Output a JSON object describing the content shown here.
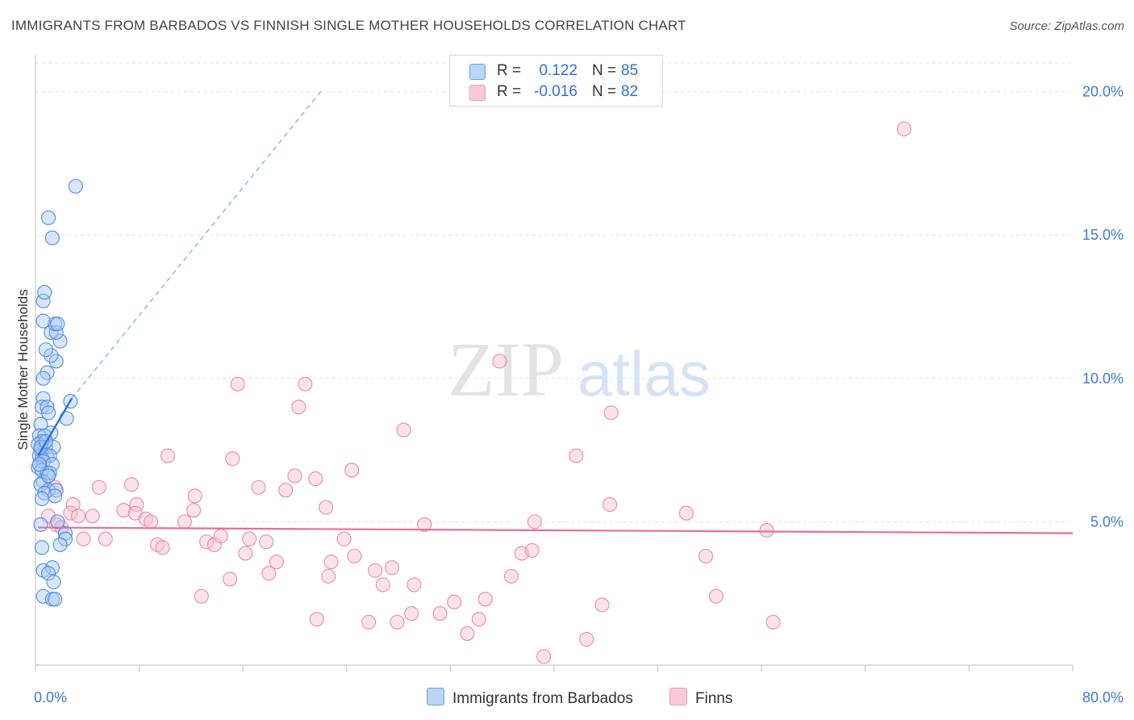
{
  "title": "IMMIGRANTS FROM BARBADOS VS FINNISH SINGLE MOTHER HOUSEHOLDS CORRELATION CHART",
  "source": "Source: ZipAtlas.com",
  "watermark": {
    "zip": "ZIP",
    "atlas": "atlas"
  },
  "colors": {
    "blue_fill": "#a9c8f3",
    "blue_stroke": "#4f8de0",
    "blue_line": "#2d6fd9",
    "pink_fill": "#f6bfd2",
    "pink_stroke": "#e88bab",
    "pink_line": "#e66f9b",
    "tick_label": "#3d7ad6",
    "grid": "#e3e3e3"
  },
  "legend": {
    "rows": [
      {
        "r_label": "R =",
        "r_value": "0.122",
        "n_label": "N =",
        "n_value": "85"
      },
      {
        "r_label": "R =",
        "r_value": "-0.016",
        "n_label": "N =",
        "n_value": "82"
      }
    ]
  },
  "chart_data": {
    "type": "scatter",
    "title": "IMMIGRANTS FROM BARBADOS VS FINNISH SINGLE MOTHER HOUSEHOLDS CORRELATION CHART",
    "xlabel": "",
    "ylabel": "Single Mother Households",
    "xlim": [
      0,
      80
    ],
    "ylim": [
      0,
      21
    ],
    "x_tick_labels": [
      {
        "value": 0,
        "label": "0.0%"
      },
      {
        "value": 80,
        "label": "80.0%"
      }
    ],
    "x_minor_ticks": [
      0,
      8,
      16,
      24,
      32,
      40,
      48,
      56,
      64,
      72,
      80
    ],
    "y_ticks": [
      {
        "value": 5,
        "label": "5.0%"
      },
      {
        "value": 10,
        "label": "10.0%"
      },
      {
        "value": 15,
        "label": "15.0%"
      },
      {
        "value": 20,
        "label": "20.0%"
      }
    ],
    "grid": true,
    "legend_position": "top-center",
    "series": [
      {
        "name": "Immigrants from Barbados",
        "color": "blue",
        "trend": {
          "x": [
            0.2,
            2.8
          ],
          "y": [
            7.3,
            9.3
          ]
        },
        "trend_extension": {
          "x": [
            2.8,
            22.0
          ],
          "y": [
            9.3,
            20.0
          ]
        },
        "points": [
          [
            0.6,
            9.3
          ],
          [
            0.5,
            9.0
          ],
          [
            0.9,
            9.0
          ],
          [
            1.0,
            8.8
          ],
          [
            0.4,
            8.4
          ],
          [
            1.2,
            8.1
          ],
          [
            0.3,
            8.0
          ],
          [
            0.7,
            8.0
          ],
          [
            0.5,
            7.8
          ],
          [
            0.2,
            7.7
          ],
          [
            0.8,
            7.6
          ],
          [
            1.4,
            7.6
          ],
          [
            0.4,
            7.5
          ],
          [
            0.3,
            7.3
          ],
          [
            0.9,
            7.3
          ],
          [
            1.1,
            7.3
          ],
          [
            0.5,
            7.2
          ],
          [
            0.6,
            7.1
          ],
          [
            1.3,
            7.0
          ],
          [
            0.2,
            6.9
          ],
          [
            0.5,
            6.8
          ],
          [
            0.9,
            6.7
          ],
          [
            1.1,
            6.7
          ],
          [
            0.6,
            6.4
          ],
          [
            0.4,
            6.3
          ],
          [
            1.0,
            6.1
          ],
          [
            1.6,
            6.1
          ],
          [
            0.7,
            6.0
          ],
          [
            1.5,
            5.9
          ],
          [
            0.5,
            5.8
          ],
          [
            1.7,
            5.0
          ],
          [
            0.4,
            4.9
          ],
          [
            2.3,
            4.6
          ],
          [
            2.3,
            4.4
          ],
          [
            1.9,
            4.2
          ],
          [
            0.5,
            4.1
          ],
          [
            1.3,
            3.4
          ],
          [
            0.6,
            3.3
          ],
          [
            1.0,
            3.2
          ],
          [
            1.4,
            2.9
          ],
          [
            0.6,
            2.4
          ],
          [
            1.3,
            2.3
          ],
          [
            1.5,
            2.3
          ],
          [
            1.6,
            10.6
          ],
          [
            1.2,
            10.8
          ],
          [
            0.8,
            11.0
          ],
          [
            1.9,
            11.3
          ],
          [
            1.2,
            11.6
          ],
          [
            1.6,
            11.6
          ],
          [
            1.5,
            11.9
          ],
          [
            1.7,
            11.9
          ],
          [
            0.6,
            12.0
          ],
          [
            0.6,
            12.7
          ],
          [
            0.7,
            13.0
          ],
          [
            1.3,
            14.9
          ],
          [
            1.0,
            15.6
          ],
          [
            3.1,
            16.7
          ],
          [
            2.7,
            9.2
          ],
          [
            2.4,
            8.6
          ],
          [
            0.9,
            10.2
          ],
          [
            0.6,
            10.0
          ],
          [
            0.4,
            7.6
          ],
          [
            0.8,
            7.8
          ],
          [
            1.0,
            6.6
          ],
          [
            0.3,
            7.0
          ]
        ]
      },
      {
        "name": "Finns",
        "color": "pink",
        "trend": {
          "x": [
            0.2,
            80.0
          ],
          "y": [
            4.8,
            4.6
          ]
        },
        "points": [
          [
            67.0,
            18.7
          ],
          [
            35.8,
            10.6
          ],
          [
            15.6,
            9.8
          ],
          [
            20.8,
            9.8
          ],
          [
            20.3,
            9.0
          ],
          [
            28.4,
            8.2
          ],
          [
            44.4,
            8.8
          ],
          [
            10.2,
            7.3
          ],
          [
            15.2,
            7.2
          ],
          [
            24.4,
            6.8
          ],
          [
            41.7,
            7.3
          ],
          [
            20.0,
            6.6
          ],
          [
            21.6,
            6.5
          ],
          [
            1.5,
            6.2
          ],
          [
            4.9,
            6.2
          ],
          [
            7.4,
            6.3
          ],
          [
            17.2,
            6.2
          ],
          [
            19.3,
            6.1
          ],
          [
            12.3,
            5.9
          ],
          [
            2.9,
            5.6
          ],
          [
            7.8,
            5.6
          ],
          [
            22.4,
            5.5
          ],
          [
            44.3,
            5.6
          ],
          [
            50.2,
            5.3
          ],
          [
            1.0,
            5.2
          ],
          [
            2.7,
            5.3
          ],
          [
            3.3,
            5.2
          ],
          [
            4.4,
            5.2
          ],
          [
            6.8,
            5.4
          ],
          [
            7.7,
            5.3
          ],
          [
            8.5,
            5.1
          ],
          [
            8.9,
            5.0
          ],
          [
            11.5,
            5.0
          ],
          [
            12.2,
            5.4
          ],
          [
            30.0,
            4.9
          ],
          [
            38.5,
            5.0
          ],
          [
            56.4,
            4.7
          ],
          [
            1.6,
            4.9
          ],
          [
            2.0,
            4.8
          ],
          [
            3.7,
            4.4
          ],
          [
            5.4,
            4.4
          ],
          [
            9.4,
            4.2
          ],
          [
            9.8,
            4.1
          ],
          [
            13.2,
            4.3
          ],
          [
            13.8,
            4.2
          ],
          [
            14.3,
            4.5
          ],
          [
            16.5,
            4.4
          ],
          [
            17.8,
            4.3
          ],
          [
            23.8,
            4.4
          ],
          [
            16.2,
            3.9
          ],
          [
            18.6,
            3.6
          ],
          [
            22.8,
            3.6
          ],
          [
            24.6,
            3.8
          ],
          [
            37.5,
            3.9
          ],
          [
            38.3,
            4.0
          ],
          [
            51.7,
            3.8
          ],
          [
            15.0,
            3.0
          ],
          [
            18.0,
            3.2
          ],
          [
            22.6,
            3.1
          ],
          [
            26.2,
            3.3
          ],
          [
            27.5,
            3.4
          ],
          [
            26.8,
            2.8
          ],
          [
            29.2,
            2.8
          ],
          [
            36.7,
            3.1
          ],
          [
            12.8,
            2.4
          ],
          [
            52.5,
            2.4
          ],
          [
            32.3,
            2.2
          ],
          [
            34.7,
            2.3
          ],
          [
            43.7,
            2.1
          ],
          [
            29.0,
            1.8
          ],
          [
            31.2,
            1.8
          ],
          [
            21.7,
            1.6
          ],
          [
            25.7,
            1.5
          ],
          [
            27.9,
            1.5
          ],
          [
            34.2,
            1.6
          ],
          [
            56.9,
            1.5
          ],
          [
            33.3,
            1.1
          ],
          [
            42.5,
            0.9
          ],
          [
            39.2,
            0.3
          ]
        ]
      }
    ]
  }
}
